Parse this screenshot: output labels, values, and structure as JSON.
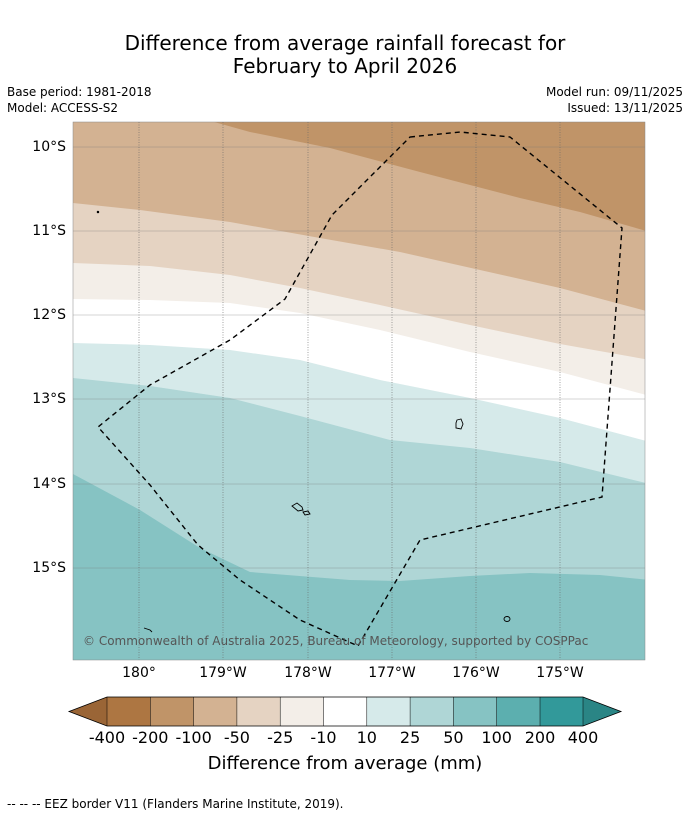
{
  "title": {
    "line1": "Difference from average rainfall forecast for",
    "line2": "February to April 2026"
  },
  "meta": {
    "base_period": "Base period: 1981-2018",
    "model": "Model: ACCESS-S2",
    "model_run": "Model run: 09/11/2025",
    "issued": "Issued: 13/11/2025"
  },
  "axes": {
    "lat_labels": [
      "10°S",
      "11°S",
      "12°S",
      "13°S",
      "14°S",
      "15°S"
    ],
    "lon_labels": [
      "180°",
      "179°W",
      "178°W",
      "177°W",
      "176°W",
      "175°W"
    ]
  },
  "copyright": "© Commonwealth of Australia 2025, Bureau of Meteorology, supported by COSPPac",
  "colorbar": {
    "labels": [
      "-400",
      "-200",
      "-100",
      "-50",
      "-25",
      "-10",
      "10",
      "25",
      "50",
      "100",
      "200",
      "400"
    ],
    "colors": [
      "#ad7642",
      "#c09468",
      "#d3b292",
      "#e5d3c2",
      "#f3eee8",
      "#ffffff",
      "#d6eaea",
      "#afd6d6",
      "#86c3c3",
      "#5cafaf",
      "#32999a"
    ],
    "under_color": "#9a6536",
    "over_color": "#2a8585",
    "title": "Difference from average (mm)"
  },
  "legend_note": "--  --  -- EEZ border V11 (Flanders Marine Institute, 2019)."
}
